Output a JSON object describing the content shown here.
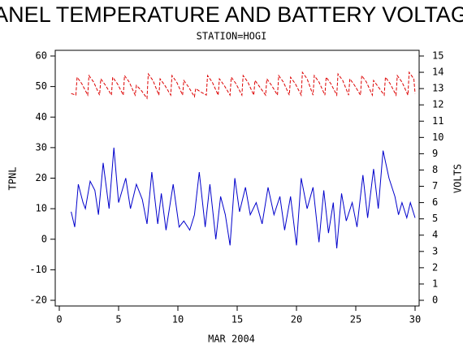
{
  "chart_data": {
    "type": "line",
    "title": "PANEL TEMPERATURE AND BATTERY VOLTAGE",
    "subtitle": "STATION=HOGI",
    "xlabel": "MAR 2004",
    "ylabel": "TPNL",
    "y2label": "VOLTS",
    "xlim": [
      0,
      30
    ],
    "xticks": [
      0,
      5,
      10,
      15,
      20,
      25,
      30
    ],
    "ylim": [
      -20,
      60
    ],
    "yticks": [
      -20,
      -10,
      0,
      10,
      20,
      30,
      40,
      50,
      60
    ],
    "y2lim": [
      0,
      15
    ],
    "y2ticks": [
      0,
      1,
      2,
      3,
      4,
      5,
      6,
      7,
      8,
      9,
      10,
      11,
      12,
      13,
      14,
      15
    ],
    "series": [
      {
        "color": "#0000cc",
        "x": [
          1.0,
          1.3,
          1.6,
          2.0,
          2.2,
          2.6,
          3.0,
          3.3,
          3.7,
          4.2,
          4.6,
          5.0,
          5.6,
          6.0,
          6.5,
          7.0,
          7.4,
          7.8,
          8.3,
          8.6,
          9.0,
          9.6,
          10.1,
          10.5,
          11.0,
          11.4,
          11.8,
          12.3,
          12.7,
          13.2,
          13.6,
          14.0,
          14.4,
          14.8,
          15.2,
          15.7,
          16.1,
          16.6,
          17.1,
          17.6,
          18.1,
          18.6,
          19.0,
          19.5,
          20.0,
          20.4,
          20.9,
          21.4,
          21.9,
          22.3,
          22.7,
          23.1,
          23.4,
          23.8,
          24.2,
          24.7,
          25.1,
          25.6,
          26.0,
          26.5,
          26.9,
          27.3,
          27.8,
          28.3,
          28.6,
          28.9,
          29.3,
          29.6,
          30.0
        ],
        "values": [
          9,
          4,
          18,
          12,
          10,
          19,
          16,
          8,
          25,
          10,
          30,
          12,
          20,
          10,
          18,
          13,
          5,
          22,
          5,
          15,
          3,
          18,
          4,
          6,
          3,
          8,
          22,
          4,
          18,
          0,
          14,
          8,
          -2,
          20,
          9,
          17,
          8,
          12,
          5,
          17,
          8,
          14,
          3,
          14,
          -2,
          20,
          10,
          17,
          -1,
          16,
          2,
          12,
          -3,
          15,
          6,
          12,
          4,
          21,
          7,
          23,
          10,
          29,
          20,
          14,
          8,
          12,
          7,
          12,
          7
        ]
      },
      {
        "color": "#dd0000",
        "axis": "y2",
        "x": [
          1.0,
          1.4,
          1.5,
          1.9,
          2.4,
          2.5,
          2.9,
          3.4,
          3.5,
          3.9,
          4.4,
          4.5,
          4.9,
          5.4,
          5.5,
          5.9,
          6.4,
          6.5,
          6.9,
          7.4,
          7.5,
          7.9,
          8.4,
          8.5,
          8.9,
          9.4,
          9.5,
          9.9,
          10.4,
          10.5,
          10.9,
          11.4,
          11.5,
          11.9,
          12.4,
          12.5,
          12.9,
          13.4,
          13.5,
          13.9,
          14.4,
          14.5,
          14.9,
          15.4,
          15.5,
          15.9,
          16.4,
          16.5,
          16.9,
          17.4,
          17.5,
          17.9,
          18.4,
          18.5,
          18.9,
          19.4,
          19.5,
          19.9,
          20.4,
          20.5,
          20.9,
          21.4,
          21.5,
          21.9,
          22.4,
          22.5,
          22.9,
          23.4,
          23.5,
          23.9,
          24.4,
          24.5,
          24.9,
          25.4,
          25.5,
          25.9,
          26.4,
          26.5,
          26.9,
          27.4,
          27.5,
          27.9,
          28.4,
          28.5,
          28.9,
          29.4,
          29.5,
          29.9,
          30.0
        ],
        "values": [
          12.7,
          12.6,
          13.7,
          13.3,
          12.6,
          13.8,
          13.4,
          12.6,
          13.6,
          13.2,
          12.6,
          13.7,
          13.3,
          12.6,
          13.8,
          13.4,
          12.6,
          13.2,
          12.9,
          12.4,
          13.9,
          13.5,
          12.6,
          13.6,
          13.2,
          12.6,
          13.8,
          13.4,
          12.6,
          13.5,
          13.1,
          12.5,
          13.0,
          12.8,
          12.6,
          13.8,
          13.4,
          12.6,
          13.6,
          13.2,
          12.6,
          13.7,
          13.3,
          12.6,
          13.8,
          13.4,
          12.6,
          13.5,
          13.1,
          12.6,
          13.6,
          13.2,
          12.6,
          13.8,
          13.4,
          12.6,
          13.7,
          13.3,
          12.6,
          14.0,
          13.6,
          12.6,
          13.8,
          13.4,
          12.6,
          13.7,
          13.3,
          12.6,
          13.9,
          13.5,
          12.6,
          13.6,
          13.2,
          12.6,
          13.8,
          13.4,
          12.6,
          13.5,
          13.1,
          12.6,
          13.7,
          13.3,
          12.6,
          13.8,
          13.4,
          12.6,
          14.0,
          13.6,
          12.7
        ]
      }
    ]
  }
}
